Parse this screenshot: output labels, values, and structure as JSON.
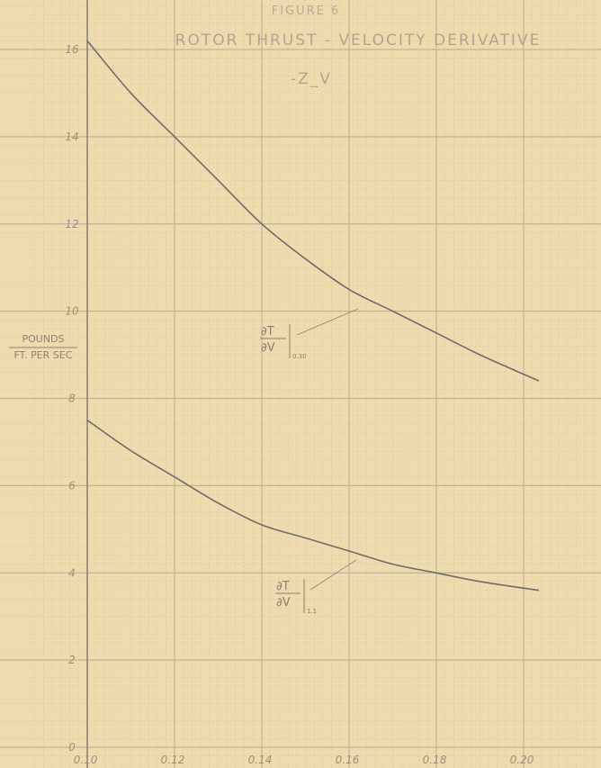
{
  "chart_data": {
    "type": "line",
    "figure_label": "FIGURE 6",
    "title": "ROTOR THRUST - VELOCITY DERIVATIVE",
    "subtitle": "-Z_V",
    "ylabel_top": "POUNDS",
    "ylabel_bottom": "FT. PER SEC",
    "xlim": [
      0.1,
      0.2
    ],
    "ylim": [
      0,
      16
    ],
    "x_ticks": [
      "0.10",
      "0.12",
      "0.14",
      "0.16",
      "0.18",
      "0.20"
    ],
    "y_ticks": [
      "0",
      "2",
      "4",
      "6",
      "8",
      "10",
      "12",
      "14",
      "16"
    ],
    "series": [
      {
        "x": [
          0.1,
          0.11,
          0.12,
          0.13,
          0.14,
          0.15,
          0.16,
          0.17,
          0.18,
          0.19,
          0.2035
        ],
        "y": [
          16.2,
          15.0,
          14.0,
          13.0,
          12.0,
          11.2,
          10.5,
          10.0,
          9.5,
          9.0,
          8.4
        ],
        "annotation_top": "∂T",
        "annotation_bottom": "∂V",
        "annotation_subscript": "0.30"
      },
      {
        "x": [
          0.1,
          0.11,
          0.12,
          0.13,
          0.14,
          0.15,
          0.16,
          0.17,
          0.18,
          0.19,
          0.2035
        ],
        "y": [
          7.5,
          6.8,
          6.2,
          5.6,
          5.1,
          4.8,
          4.5,
          4.2,
          4.0,
          3.8,
          3.6
        ],
        "annotation_top": "∂T",
        "annotation_bottom": "∂V",
        "annotation_subscript": "1.1"
      }
    ]
  },
  "colors": {
    "paper": "#efdcae",
    "grid_fine": "#d8c7a1",
    "grid_major": "#bfb398",
    "curve": "#6f6c6c",
    "axis": "#8c8578"
  }
}
